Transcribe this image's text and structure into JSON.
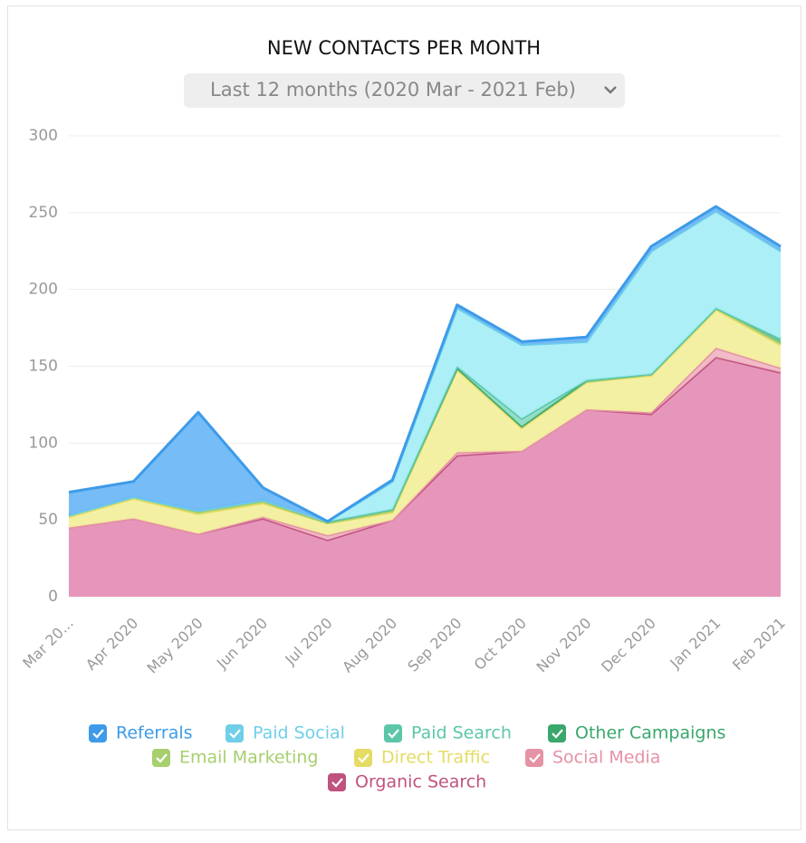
{
  "chart_data": {
    "type": "stacked-area",
    "title": "NEW CONTACTS PER MONTH",
    "period_selector": "Last 12 months (2020 Mar - 2021 Feb)",
    "categories": [
      "Mar 20...",
      "Apr 2020",
      "May 2020",
      "Jun 2020",
      "Jul 2020",
      "Aug 2020",
      "Sep 2020",
      "Oct 2020",
      "Nov 2020",
      "Dec 2020",
      "Jan 2021",
      "Feb 2021"
    ],
    "ylim": [
      0,
      300
    ],
    "yticks": [
      0,
      50,
      100,
      150,
      200,
      250,
      300
    ],
    "grid": true,
    "series": [
      {
        "name": "Referrals",
        "color": "#3d9be9",
        "fill": "#6fb8f7",
        "values": [
          15,
          10,
          64,
          8,
          0,
          1,
          2,
          2,
          3,
          3,
          3,
          3
        ]
      },
      {
        "name": "Paid Social",
        "color": "#6fcfe8",
        "fill": "#a8eef6",
        "values": [
          0,
          0,
          0,
          0,
          0,
          18,
          38,
          48,
          25,
          80,
          63,
          57
        ]
      },
      {
        "name": "Paid Search",
        "color": "#5cc7a8",
        "fill": "#8fdcc4",
        "values": [
          0,
          0,
          0,
          0,
          0,
          0,
          1,
          5,
          0,
          0,
          0,
          0
        ]
      },
      {
        "name": "Other Campaigns",
        "color": "#3aa76d",
        "fill": "#6cc393",
        "values": [
          0,
          0,
          1,
          1,
          1,
          1,
          0,
          0,
          1,
          0,
          0,
          3
        ]
      },
      {
        "name": "Email Marketing",
        "color": "#a7cf6e",
        "fill": "#c9e49d",
        "values": [
          1,
          1,
          1,
          1,
          0,
          1,
          1,
          1,
          0,
          1,
          1,
          1
        ]
      },
      {
        "name": "Direct Traffic",
        "color": "#e4dc63",
        "fill": "#f3ef9e",
        "values": [
          7,
          13,
          13,
          9,
          8,
          5,
          54,
          15,
          18,
          24,
          25,
          15
        ]
      },
      {
        "name": "Social Media",
        "color": "#e592a5",
        "fill": "#f0b7c4",
        "values": [
          0,
          0,
          0,
          1,
          3,
          0,
          2,
          0,
          0,
          1,
          6,
          3
        ]
      },
      {
        "name": "Organic Search",
        "color": "#c0527f",
        "fill": "#e590b6",
        "values": [
          45,
          51,
          41,
          51,
          37,
          50,
          92,
          95,
          122,
          119,
          156,
          146
        ]
      }
    ]
  }
}
